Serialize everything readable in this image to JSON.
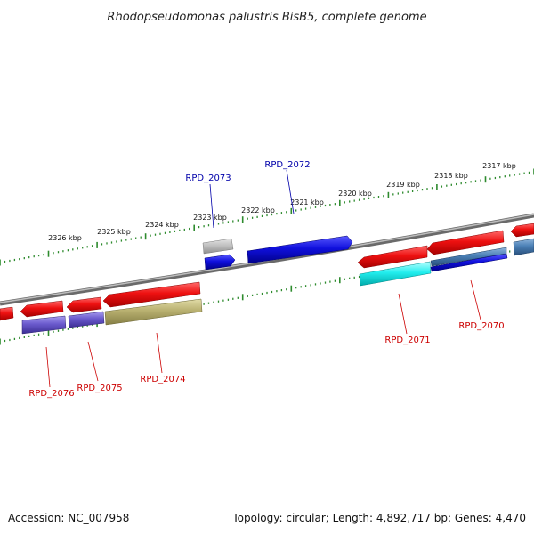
{
  "title": "Rhodopseudomonas palustris BisB5, complete genome",
  "footer": {
    "accession": "Accession: NC_007958",
    "summary": "Topology: circular; Length: 4,892,717 bp; Genes: 4,470"
  },
  "ruler_labels": {
    "outer": [
      "2326 kbp",
      "2325 kbp",
      "2324 kbp",
      "2323 kbp",
      "2322 kbp",
      "2321 kbp",
      "2320 kbp",
      "2319 kbp",
      "2318 kbp",
      "2317 kbp"
    ]
  },
  "gene_labels": {
    "forward": [
      "RPD_2073",
      "RPD_2072"
    ],
    "reverse": [
      "RPD_2071",
      "RPD_2070",
      "RPD_2076",
      "RPD_2075",
      "RPD_2074"
    ]
  },
  "colors": {
    "forward_label": "#0000aa",
    "reverse_label": "#cc0000",
    "ruler": "#2e8b2e",
    "backbone": "#8a8a8a",
    "cds_red": "#ee1111",
    "cds_blue": "#1010dd",
    "cds_gray": "#b8b8b8",
    "cds_purple": "#6a5acd",
    "cds_olive": "#b8b070",
    "cds_cyan": "#22eeee",
    "cds_steel": "#4a7fb5"
  }
}
